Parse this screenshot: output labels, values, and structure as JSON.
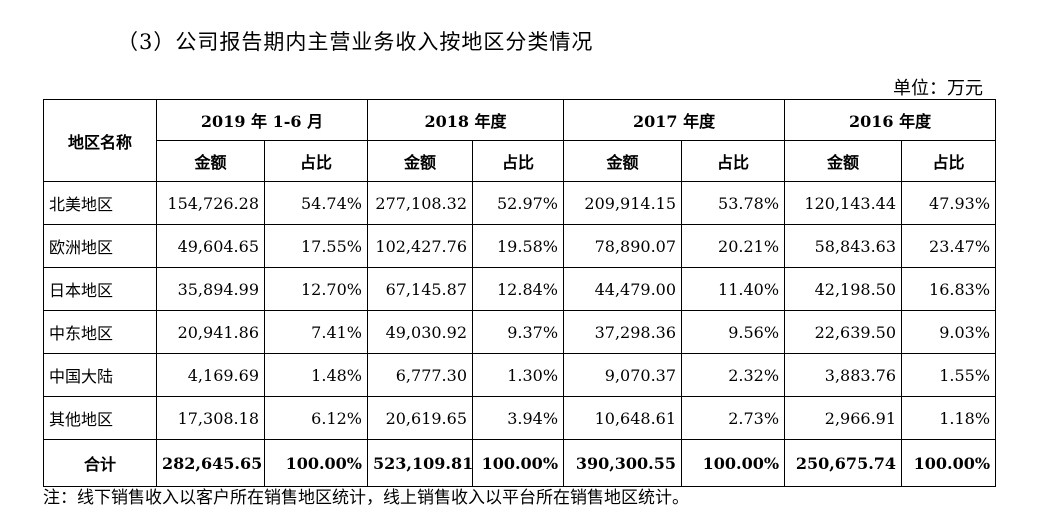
{
  "title": "（3）公司报告期内主营业务收入按地区分类情况",
  "unit": "单位：万元",
  "header": {
    "region": "地区名称",
    "periods": [
      "2019 年 1-6 月",
      "2018 年度",
      "2017 年度",
      "2016 年度"
    ],
    "amount": "金额",
    "ratio": "占比"
  },
  "rows": [
    {
      "name": "北美地区",
      "cells": [
        "154,726.28",
        "54.74%",
        "277,108.32",
        "52.97%",
        "209,914.15",
        "53.78%",
        "120,143.44",
        "47.93%"
      ]
    },
    {
      "name": "欧洲地区",
      "cells": [
        "49,604.65",
        "17.55%",
        "102,427.76",
        "19.58%",
        "78,890.07",
        "20.21%",
        "58,843.63",
        "23.47%"
      ]
    },
    {
      "name": "日本地区",
      "cells": [
        "35,894.99",
        "12.70%",
        "67,145.87",
        "12.84%",
        "44,479.00",
        "11.40%",
        "42,198.50",
        "16.83%"
      ]
    },
    {
      "name": "中东地区",
      "cells": [
        "20,941.86",
        "7.41%",
        "49,030.92",
        "9.37%",
        "37,298.36",
        "9.56%",
        "22,639.50",
        "9.03%"
      ]
    },
    {
      "name": "中国大陆",
      "cells": [
        "4,169.69",
        "1.48%",
        "6,777.30",
        "1.30%",
        "9,070.37",
        "2.32%",
        "3,883.76",
        "1.55%"
      ]
    },
    {
      "name": "其他地区",
      "cells": [
        "17,308.18",
        "6.12%",
        "20,619.65",
        "3.94%",
        "10,648.61",
        "2.73%",
        "2,966.91",
        "1.18%"
      ]
    }
  ],
  "total": {
    "name": "合计",
    "cells": [
      "282,645.65",
      "100.00%",
      "523,109.81",
      "100.00%",
      "390,300.55",
      "100.00%",
      "250,675.74",
      "100.00%"
    ]
  },
  "note": "注：线下销售收入以客户所在销售地区统计，线上销售收入以平台所在销售地区统计。",
  "chart_data": {
    "type": "table",
    "title": "（3）公司报告期内主营业务收入按地区分类情况",
    "unit": "单位：万元",
    "columns": [
      "地区名称",
      "2019 年 1-6 月 金额",
      "2019 年 1-6 月 占比",
      "2018 年度 金额",
      "2018 年度 占比",
      "2017 年度 金额",
      "2017 年度 占比",
      "2016 年度 金额",
      "2016 年度 占比"
    ],
    "rows": [
      [
        "北美地区",
        "154,726.28",
        "54.74%",
        "277,108.32",
        "52.97%",
        "209,914.15",
        "53.78%",
        "120,143.44",
        "47.93%"
      ],
      [
        "欧洲地区",
        "49,604.65",
        "17.55%",
        "102,427.76",
        "19.58%",
        "78,890.07",
        "20.21%",
        "58,843.63",
        "23.47%"
      ],
      [
        "日本地区",
        "35,894.99",
        "12.70%",
        "67,145.87",
        "12.84%",
        "44,479.00",
        "11.40%",
        "42,198.50",
        "16.83%"
      ],
      [
        "中东地区",
        "20,941.86",
        "7.41%",
        "49,030.92",
        "9.37%",
        "37,298.36",
        "9.56%",
        "22,639.50",
        "9.03%"
      ],
      [
        "中国大陆",
        "4,169.69",
        "1.48%",
        "6,777.30",
        "1.30%",
        "9,070.37",
        "2.32%",
        "3,883.76",
        "1.55%"
      ],
      [
        "其他地区",
        "17,308.18",
        "6.12%",
        "20,619.65",
        "3.94%",
        "10,648.61",
        "2.73%",
        "2,966.91",
        "1.18%"
      ],
      [
        "合计",
        "282,645.65",
        "100.00%",
        "523,109.81",
        "100.00%",
        "390,300.55",
        "100.00%",
        "250,675.74",
        "100.00%"
      ]
    ]
  }
}
